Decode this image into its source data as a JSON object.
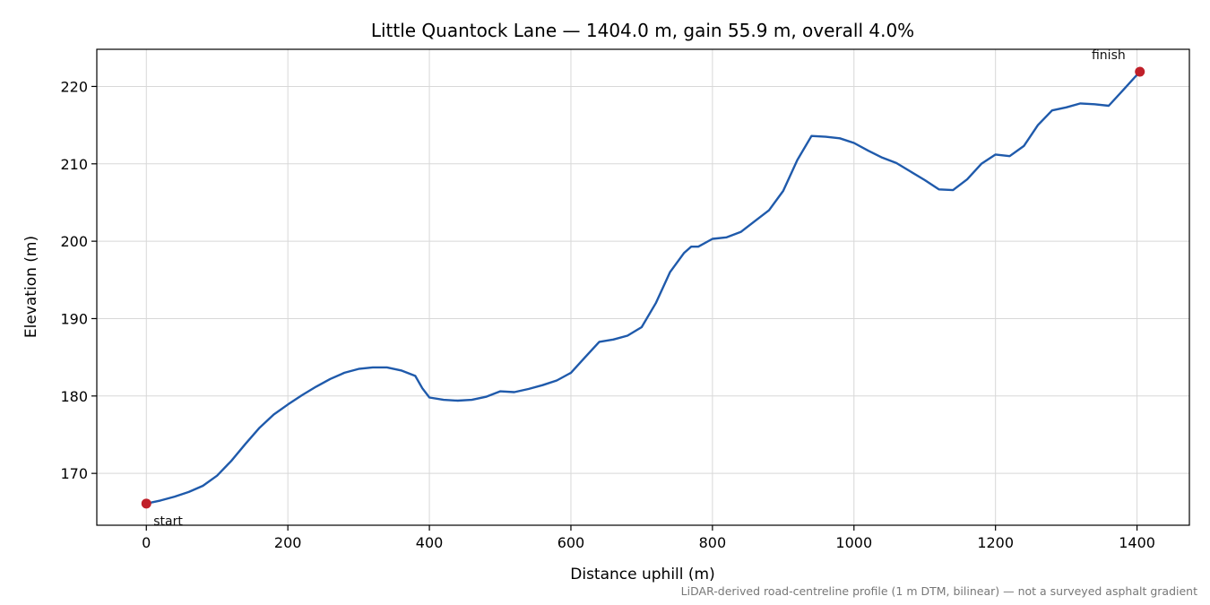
{
  "chart_data": {
    "type": "line",
    "title": "Little Quantock Lane — 1404.0 m, gain 55.9 m, overall 4.0%",
    "xlabel": "Distance uphill (m)",
    "ylabel": "Elevation (m)",
    "xlim": [
      -70,
      1474
    ],
    "ylim": [
      163.3,
      224.8
    ],
    "xticks": [
      0,
      200,
      400,
      600,
      800,
      1000,
      1200,
      1400
    ],
    "yticks": [
      170,
      180,
      190,
      200,
      210,
      220
    ],
    "grid": true,
    "line_color": "#1f5aab",
    "marker_color": "#c0202a",
    "series": [
      {
        "x": [
          0,
          20,
          40,
          60,
          80,
          100,
          120,
          140,
          160,
          180,
          200,
          220,
          240,
          260,
          280,
          300,
          320,
          340,
          360,
          380,
          390,
          400,
          420,
          440,
          460,
          480,
          500,
          520,
          540,
          560,
          580,
          600,
          620,
          640,
          660,
          680,
          700,
          720,
          740,
          760,
          770,
          780,
          800,
          820,
          840,
          860,
          880,
          900,
          920,
          940,
          960,
          980,
          1000,
          1020,
          1040,
          1060,
          1080,
          1100,
          1120,
          1140,
          1160,
          1180,
          1200,
          1220,
          1240,
          1260,
          1280,
          1300,
          1320,
          1340,
          1360,
          1380,
          1404
        ],
        "y": [
          166.1,
          166.5,
          167.0,
          167.6,
          168.4,
          169.7,
          171.6,
          173.8,
          175.9,
          177.6,
          178.9,
          180.1,
          181.2,
          182.2,
          183.0,
          183.5,
          183.7,
          183.7,
          183.3,
          182.6,
          181.0,
          179.8,
          179.5,
          179.4,
          179.5,
          179.9,
          180.6,
          180.5,
          180.9,
          181.4,
          182.0,
          183.0,
          185.0,
          187.0,
          187.3,
          187.8,
          188.9,
          192.0,
          196.0,
          198.5,
          199.3,
          199.3,
          200.3,
          200.5,
          201.2,
          202.6,
          204.0,
          206.5,
          210.5,
          213.6,
          213.5,
          213.3,
          212.7,
          211.7,
          210.8,
          210.1,
          209.0,
          207.9,
          206.7,
          206.6,
          208.0,
          210.0,
          211.2,
          211.0,
          212.3,
          215.0,
          216.9,
          217.3,
          217.8,
          217.7,
          217.5,
          219.5,
          221.9
        ]
      }
    ],
    "annotations": [
      {
        "text": "start",
        "x": 0,
        "y": 166.1
      },
      {
        "text": "finish",
        "x": 1404,
        "y": 221.9
      }
    ],
    "footnote": "LiDAR-derived road-centreline profile (1 m DTM, bilinear) — not a surveyed asphalt gradient"
  }
}
